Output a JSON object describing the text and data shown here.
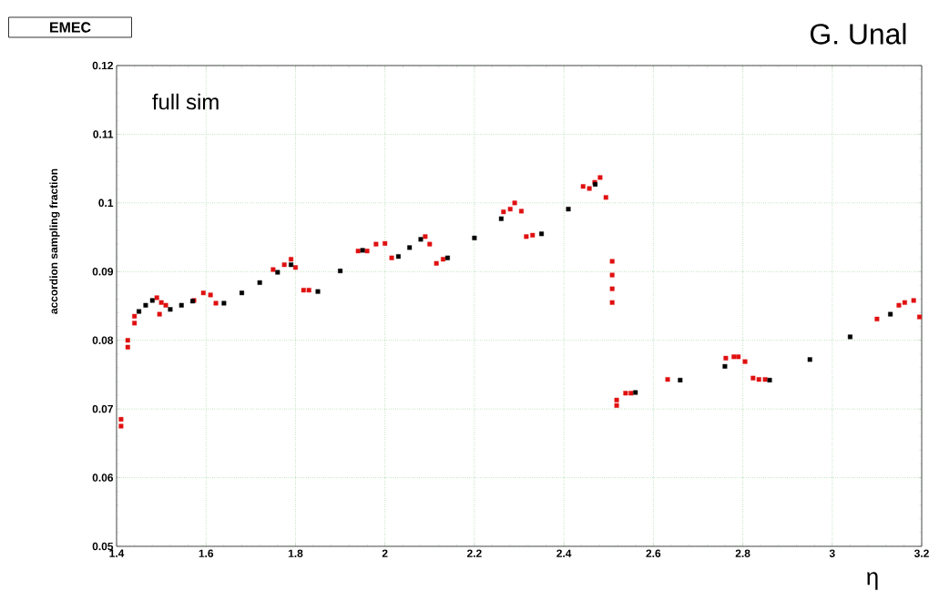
{
  "chart_data": {
    "type": "scatter",
    "title": "EMEC",
    "xlabel": "η",
    "ylabel": "accordion sampling fraction",
    "annotations": [
      "full sim",
      "G. Unal"
    ],
    "xlim": [
      1.4,
      3.2
    ],
    "ylim": [
      0.05,
      0.12
    ],
    "xticks": [
      1.4,
      1.6,
      1.8,
      2,
      2.2,
      2.4,
      2.6,
      2.8,
      3,
      3.2
    ],
    "yticks": [
      0.05,
      0.06,
      0.07,
      0.08,
      0.09,
      0.1,
      0.11,
      0.12
    ],
    "grid": true,
    "marker": "square",
    "series": [
      {
        "color": "#e01010",
        "x": [
          1.41,
          1.41,
          1.425,
          1.425,
          1.44,
          1.44,
          1.49,
          1.496,
          1.5,
          1.51,
          1.573,
          1.594,
          1.61,
          1.622,
          1.75,
          1.775,
          1.79,
          1.8,
          1.818,
          1.83,
          1.94,
          1.96,
          1.98,
          2.0,
          2.015,
          2.09,
          2.1,
          2.115,
          2.13,
          2.265,
          2.28,
          2.29,
          2.305,
          2.316,
          2.33,
          2.443,
          2.457,
          2.469,
          2.481,
          2.494,
          2.508,
          2.508,
          2.508,
          2.508,
          2.518,
          2.518,
          2.538,
          2.55,
          2.632,
          2.762,
          2.78,
          2.79,
          2.805,
          2.823,
          2.836,
          2.85,
          3.1,
          3.149,
          3.162,
          3.182,
          3.195
        ],
        "values": [
          0.0675,
          0.0685,
          0.079,
          0.08,
          0.0825,
          0.0835,
          0.0862,
          0.0838,
          0.0855,
          0.0851,
          0.0858,
          0.0869,
          0.0866,
          0.0854,
          0.0903,
          0.091,
          0.0918,
          0.0906,
          0.0873,
          0.0873,
          0.093,
          0.093,
          0.094,
          0.0941,
          0.092,
          0.0951,
          0.094,
          0.0912,
          0.0918,
          0.0987,
          0.0991,
          0.1,
          0.0988,
          0.0951,
          0.0953,
          0.1024,
          0.1021,
          0.103,
          0.1037,
          0.1008,
          0.0915,
          0.0895,
          0.0875,
          0.0855,
          0.0705,
          0.0713,
          0.0723,
          0.0723,
          0.0743,
          0.0774,
          0.0776,
          0.0776,
          0.0769,
          0.0745,
          0.0743,
          0.0743,
          0.0831,
          0.0851,
          0.0855,
          0.0858,
          0.0834
        ]
      },
      {
        "color": "#000000",
        "x": [
          1.45,
          1.465,
          1.48,
          1.52,
          1.545,
          1.57,
          1.64,
          1.68,
          1.72,
          1.76,
          1.79,
          1.85,
          1.9,
          1.95,
          2.03,
          2.055,
          2.08,
          2.14,
          2.2,
          2.26,
          2.35,
          2.41,
          2.47,
          2.56,
          2.66,
          2.76,
          2.86,
          2.95,
          3.04,
          3.13
        ],
        "values": [
          0.0842,
          0.0851,
          0.0858,
          0.0845,
          0.0851,
          0.0857,
          0.0854,
          0.0869,
          0.0884,
          0.0899,
          0.091,
          0.0871,
          0.0901,
          0.0931,
          0.0922,
          0.0935,
          0.0947,
          0.092,
          0.0949,
          0.0977,
          0.0955,
          0.0991,
          0.1027,
          0.0724,
          0.0742,
          0.0762,
          0.0742,
          0.0772,
          0.0805,
          0.0838
        ]
      }
    ]
  }
}
